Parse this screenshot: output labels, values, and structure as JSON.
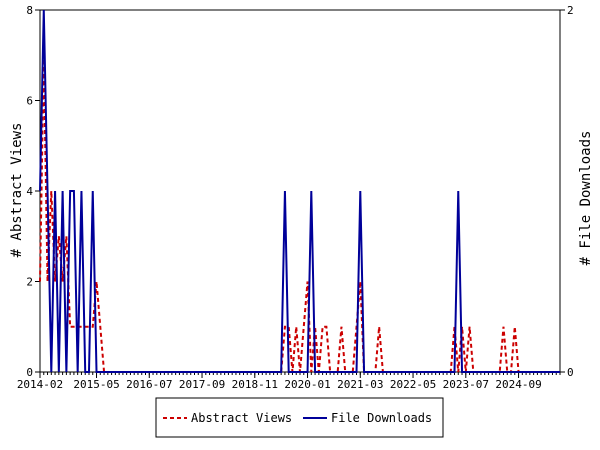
{
  "chart_data": {
    "type": "line",
    "title": "",
    "xlabel": "",
    "ylabel": "# Abstract Views",
    "y2label": "# File Downloads",
    "grid": false,
    "legend_position": "bottom",
    "xlim": [
      "2014-02",
      "2025-08"
    ],
    "ylim": [
      0,
      8
    ],
    "y2lim": [
      0,
      2
    ],
    "x_ticks": [
      "2014-02",
      "2015-05",
      "2016-07",
      "2017-09",
      "2018-11",
      "2020-01",
      "2021-03",
      "2022-05",
      "2023-07",
      "2024-09"
    ],
    "y_ticks": [
      0,
      2,
      4,
      6,
      8
    ],
    "y2_ticks": [
      0,
      2
    ],
    "series": [
      {
        "name": "Abstract Views",
        "axis": "left",
        "color": "#cc0000",
        "style": "dashed",
        "points": [
          [
            "2014-02",
            2
          ],
          [
            "2014-03",
            7
          ],
          [
            "2014-04",
            2
          ],
          [
            "2014-05",
            4
          ],
          [
            "2014-06",
            2
          ],
          [
            "2014-07",
            3
          ],
          [
            "2014-08",
            2
          ],
          [
            "2014-09",
            3
          ],
          [
            "2014-10",
            1
          ],
          [
            "2014-11",
            1
          ],
          [
            "2014-12",
            1
          ],
          [
            "2015-01",
            1
          ],
          [
            "2015-02",
            1
          ],
          [
            "2015-03",
            1
          ],
          [
            "2015-04",
            1
          ],
          [
            "2015-05",
            2
          ],
          [
            "2015-06",
            1
          ],
          [
            "2015-07",
            0
          ],
          [
            "2019-06",
            0
          ],
          [
            "2019-07",
            1
          ],
          [
            "2019-08",
            1
          ],
          [
            "2019-09",
            0
          ],
          [
            "2019-10",
            1
          ],
          [
            "2019-11",
            0
          ],
          [
            "2019-12",
            1
          ],
          [
            "2020-01",
            2
          ],
          [
            "2020-02",
            0
          ],
          [
            "2020-03",
            1
          ],
          [
            "2020-04",
            0
          ],
          [
            "2020-05",
            1
          ],
          [
            "2020-06",
            1
          ],
          [
            "2020-07",
            0
          ],
          [
            "2020-09",
            0
          ],
          [
            "2020-10",
            1
          ],
          [
            "2020-11",
            0
          ],
          [
            "2021-01",
            0
          ],
          [
            "2021-02",
            1
          ],
          [
            "2021-03",
            2
          ],
          [
            "2021-04",
            0
          ],
          [
            "2021-07",
            0
          ],
          [
            "2021-08",
            1
          ],
          [
            "2021-09",
            0
          ],
          [
            "2023-03",
            0
          ],
          [
            "2023-04",
            1
          ],
          [
            "2023-05",
            0
          ],
          [
            "2023-06",
            1
          ],
          [
            "2023-07",
            0
          ],
          [
            "2023-08",
            1
          ],
          [
            "2023-09",
            0
          ],
          [
            "2024-04",
            0
          ],
          [
            "2024-05",
            1
          ],
          [
            "2024-06",
            0
          ],
          [
            "2024-07",
            0
          ],
          [
            "2024-08",
            1
          ],
          [
            "2024-09",
            0
          ]
        ]
      },
      {
        "name": "File Downloads",
        "axis": "right",
        "color": "#000099",
        "style": "solid",
        "points": [
          [
            "2014-02",
            1
          ],
          [
            "2014-03",
            2
          ],
          [
            "2014-04",
            1
          ],
          [
            "2014-05",
            0
          ],
          [
            "2014-06",
            1
          ],
          [
            "2014-07",
            0
          ],
          [
            "2014-08",
            1
          ],
          [
            "2014-09",
            0
          ],
          [
            "2014-10",
            1
          ],
          [
            "2014-11",
            1
          ],
          [
            "2014-12",
            0
          ],
          [
            "2015-01",
            1
          ],
          [
            "2015-02",
            0
          ],
          [
            "2015-03",
            0
          ],
          [
            "2015-04",
            1
          ],
          [
            "2015-05",
            0
          ],
          [
            "2019-06",
            0
          ],
          [
            "2019-07",
            1
          ],
          [
            "2019-08",
            0
          ],
          [
            "2020-01",
            0
          ],
          [
            "2020-02",
            1
          ],
          [
            "2020-03",
            0
          ],
          [
            "2021-02",
            0
          ],
          [
            "2021-03",
            1
          ],
          [
            "2021-04",
            0
          ],
          [
            "2023-04",
            0
          ],
          [
            "2023-05",
            1
          ],
          [
            "2023-06",
            0
          ]
        ]
      }
    ]
  }
}
